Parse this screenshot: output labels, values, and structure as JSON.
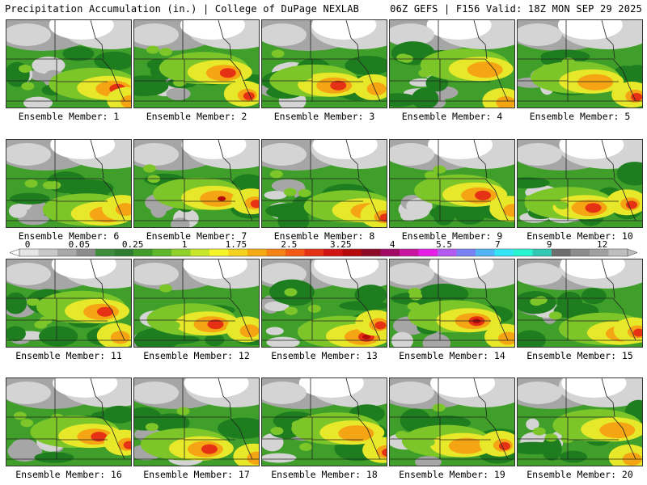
{
  "header": {
    "left": "Precipitation Accumulation (in.) | College of DuPage NEXLAB",
    "right": "06Z GEFS | F156 Valid: 18Z MON SEP 29 2025"
  },
  "panels": [
    {
      "label": "Ensemble Member: 1"
    },
    {
      "label": "Ensemble Member: 2"
    },
    {
      "label": "Ensemble Member: 3"
    },
    {
      "label": "Ensemble Member: 4"
    },
    {
      "label": "Ensemble Member: 5"
    },
    {
      "label": "Ensemble Member: 6"
    },
    {
      "label": "Ensemble Member: 7"
    },
    {
      "label": "Ensemble Member: 8"
    },
    {
      "label": "Ensemble Member: 9"
    },
    {
      "label": "Ensemble Member: 10"
    },
    {
      "label": "Ensemble Member: 11"
    },
    {
      "label": "Ensemble Member: 12"
    },
    {
      "label": "Ensemble Member: 13"
    },
    {
      "label": "Ensemble Member: 14"
    },
    {
      "label": "Ensemble Member: 15"
    },
    {
      "label": "Ensemble Member: 16"
    },
    {
      "label": "Ensemble Member: 17"
    },
    {
      "label": "Ensemble Member: 18"
    },
    {
      "label": "Ensemble Member: 19"
    },
    {
      "label": "Ensemble Member: 20"
    }
  ],
  "color_scale": {
    "tick_labels": [
      "0",
      "0.05",
      "0.25",
      "1",
      "1.75",
      "2.5",
      "3.25",
      "4",
      "5.5",
      "7",
      "9",
      "12"
    ],
    "colors": [
      "#e6e6e6",
      "#c8c8c8",
      "#a9a9a9",
      "#8c8c8c",
      "#3c8c3c",
      "#2e7d32",
      "#3f9b2a",
      "#5fb82a",
      "#8fd12a",
      "#c8e62a",
      "#f5f52a",
      "#f5d21e",
      "#f5aa14",
      "#f58214",
      "#f55a14",
      "#e63214",
      "#d21414",
      "#b40a0a",
      "#8c0a28",
      "#a00a64",
      "#c814a0",
      "#e61ee6",
      "#b45af0",
      "#7882f5",
      "#50b4f5",
      "#32e6f5",
      "#28f5d2",
      "#32c8b4",
      "#6e6e6e",
      "#8c8c8c",
      "#a0a0a0",
      "#bebebe"
    ]
  },
  "field_colors": {
    "white": "#ffffff",
    "lgray": "#d4d4d4",
    "gray": "#a6a6a6",
    "dgray": "#7f7f7f",
    "dgreen": "#1e7d1e",
    "green": "#3f9f2a",
    "lgreen": "#7cc62a",
    "yellow": "#e8e82a",
    "orange": "#f5a514",
    "red": "#e63214",
    "dred": "#b40a0a",
    "border": "#222222"
  }
}
